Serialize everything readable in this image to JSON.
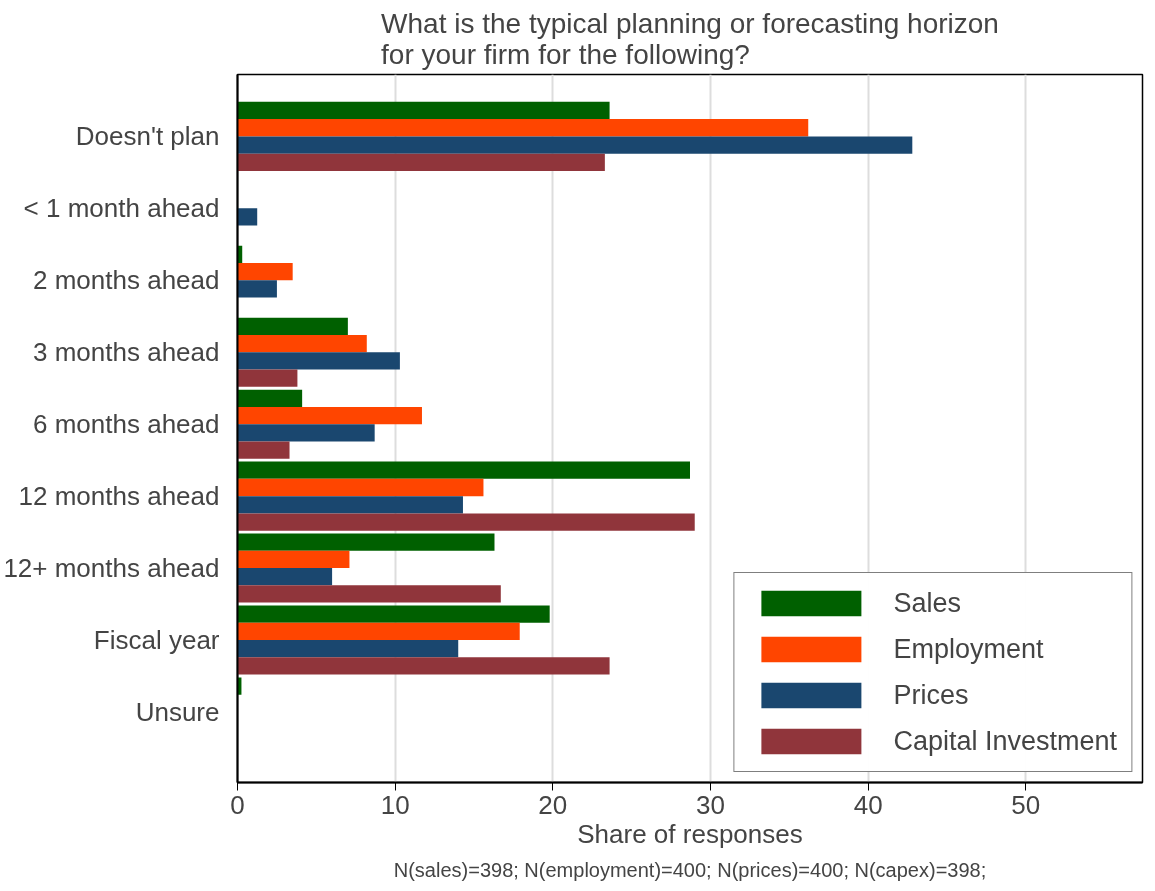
{
  "chart_data": {
    "type": "bar",
    "orientation": "horizontal",
    "title": "What is the typical planning or forecasting horizon\nfor your firm for the following?",
    "xlabel": "Share of responses",
    "annotations": [
      "N(sales)=398; N(employment)=400; N(prices)=400; N(capex)=398;"
    ],
    "categories": [
      "Doesn't plan",
      "< 1 month ahead",
      "2 months ahead",
      "3 months ahead",
      "6 months ahead",
      "12 months ahead",
      "12+ months ahead",
      "Fiscal year",
      "Unsure"
    ],
    "series": [
      {
        "name": "Sales",
        "color": "#006000",
        "values": [
          23.6,
          null,
          0.3,
          7.0,
          4.1,
          28.7,
          16.3,
          19.8,
          0.25
        ]
      },
      {
        "name": "Employment",
        "color": "#ff4500",
        "values": [
          36.2,
          null,
          3.5,
          8.2,
          11.7,
          15.6,
          7.1,
          17.9,
          0
        ]
      },
      {
        "name": "Prices",
        "color": "#1a476f",
        "values": [
          42.8,
          1.25,
          2.5,
          10.3,
          8.7,
          14.3,
          6.0,
          14.0,
          null
        ]
      },
      {
        "name": "Capital Investment",
        "color": "#90353b",
        "values": [
          23.3,
          0,
          null,
          3.8,
          3.3,
          29.0,
          16.7,
          23.6,
          null
        ]
      }
    ],
    "xlim": [
      0,
      57.4
    ],
    "xticks": [
      0,
      10,
      20,
      30,
      40,
      50
    ],
    "grid": "x",
    "legend": "bottom right"
  }
}
